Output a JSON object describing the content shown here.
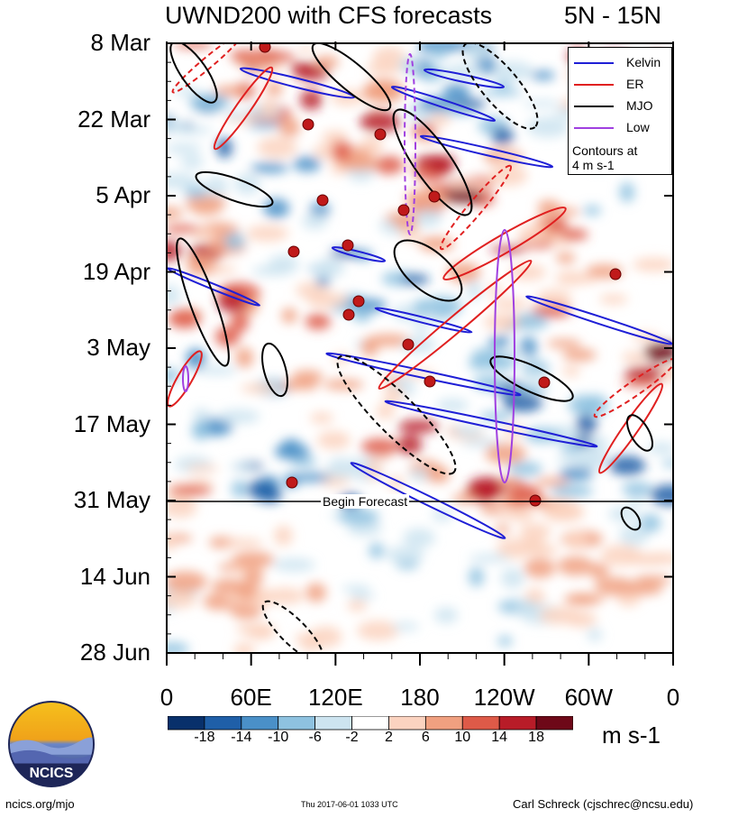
{
  "title": {
    "left": "UWND200 with CFS forecasts",
    "right": "5N - 15N"
  },
  "legend": {
    "items": [
      {
        "label": "Kelvin",
        "color": "#1f1fd6"
      },
      {
        "label": "ER",
        "color": "#e02020"
      },
      {
        "label": "MJO",
        "color": "#000000"
      },
      {
        "label": "Low",
        "color": "#a040e0"
      }
    ],
    "note_line1": "Contours at",
    "note_line2": "4 m s-1"
  },
  "forecast_label": "Begin Forecast",
  "colorbar": {
    "units": "m s-1",
    "labels": [
      "-18",
      "-14",
      "-10",
      "-6",
      "-2",
      "2",
      "6",
      "10",
      "14",
      "18"
    ],
    "colors": [
      "#08306b",
      "#1f5fa8",
      "#4a90c8",
      "#8ec2e0",
      "#cde4f0",
      "#ffffff",
      "#fbd3c0",
      "#f0a080",
      "#de5a48",
      "#b81c28",
      "#6e0818"
    ]
  },
  "footer": {
    "left": "ncics.org/mjo",
    "middle": "Thu 2017-06-01 1033 UTC",
    "right": "Carl Schreck (cjschrec@ncsu.edu)"
  },
  "logo_text": "NCICS",
  "chart_data": {
    "type": "heatmap",
    "title": "UWND200 with CFS forecasts",
    "subtitle": "5N - 15N",
    "x_ticks": [
      "0",
      "60E",
      "120E",
      "180",
      "120W",
      "60W",
      "0"
    ],
    "y_ticks": [
      "8 Mar",
      "22 Mar",
      "5 Apr",
      "19 Apr",
      "3 May",
      "17 May",
      "31 May",
      "14 Jun",
      "28 Jun"
    ],
    "xlim": [
      0,
      360
    ],
    "ylim": [
      "2017-03-08",
      "2017-06-28"
    ],
    "forecast_start": "2017-05-31",
    "units": "m s-1",
    "contour_interval": 4,
    "legend_position": "top-right",
    "series": [
      {
        "name": "Kelvin",
        "color": "#1f1fd6"
      },
      {
        "name": "ER",
        "color": "#e02020"
      },
      {
        "name": "MJO",
        "color": "#000000"
      },
      {
        "name": "Low",
        "color": "#a040e0"
      }
    ]
  }
}
